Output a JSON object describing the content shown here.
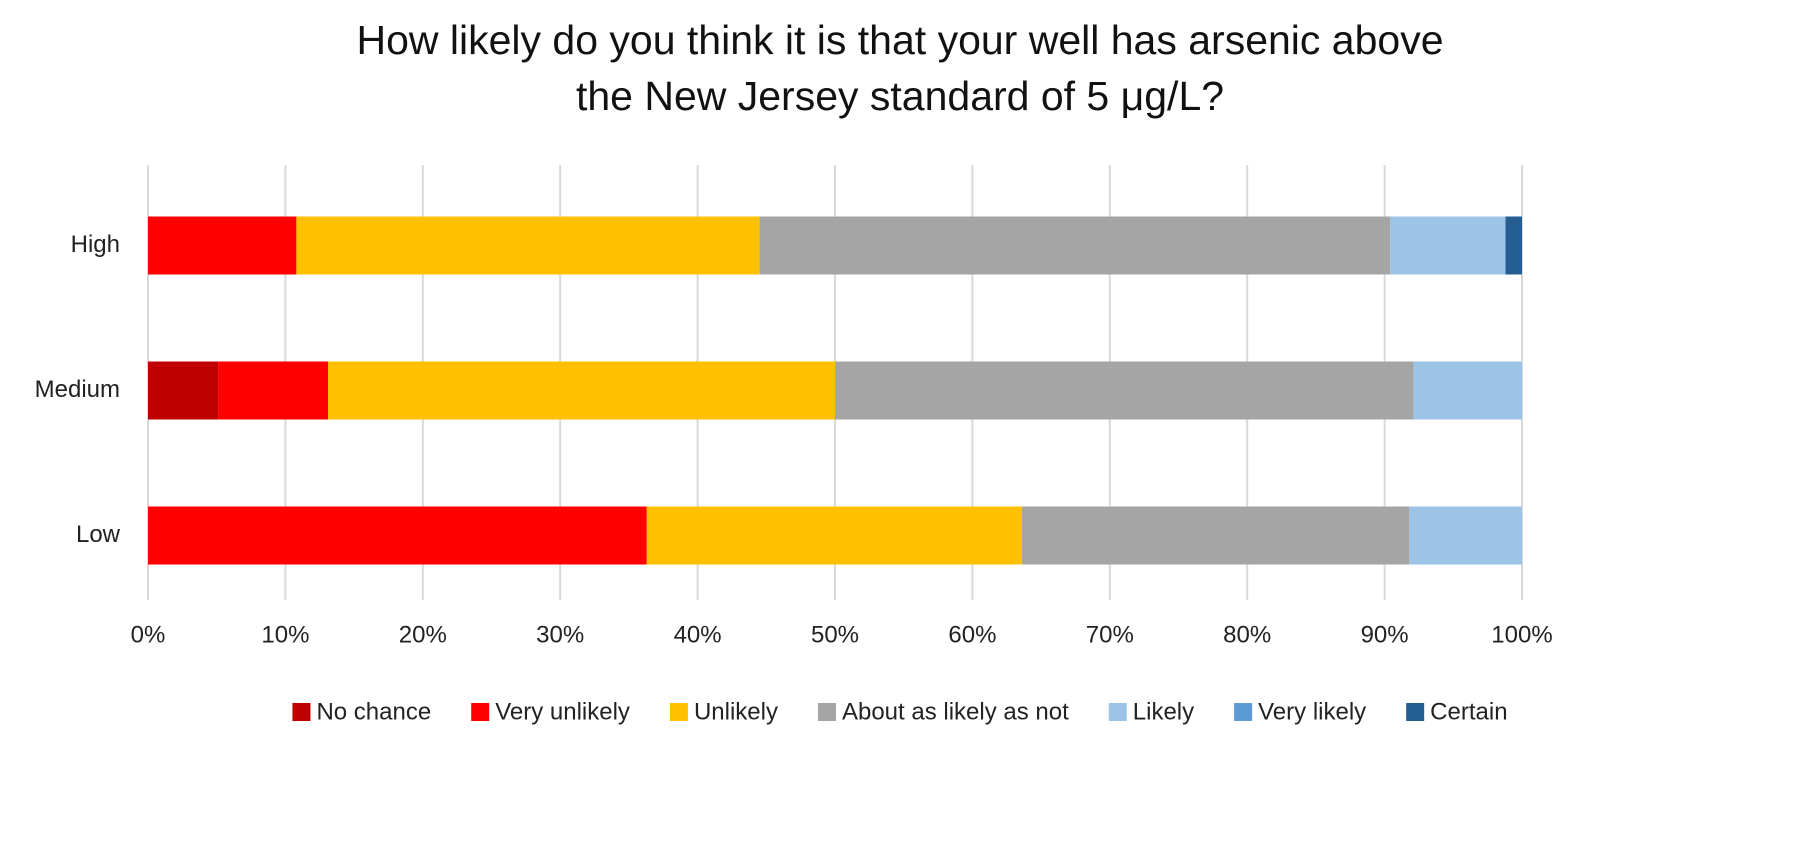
{
  "chart_data": {
    "type": "stacked-bar-horizontal",
    "title": "How likely do you think it is that your well has arsenic above\nthe New Jersey standard of 5 μg/L?",
    "categories": [
      "High",
      "Medium",
      "Low"
    ],
    "series": [
      {
        "name": "No chance",
        "color": "#c00000",
        "values": [
          0,
          5.1,
          0
        ]
      },
      {
        "name": "Very unlikely",
        "color": "#ff0000",
        "values": [
          10.8,
          8.0,
          36.3
        ]
      },
      {
        "name": "Unlikely",
        "color": "#ffc000",
        "values": [
          33.7,
          36.9,
          27.3
        ]
      },
      {
        "name": "About as likely as not",
        "color": "#a5a5a5",
        "values": [
          45.9,
          42.1,
          28.2
        ]
      },
      {
        "name": "Likely",
        "color": "#9dc3e6",
        "values": [
          8.4,
          7.9,
          8.2
        ]
      },
      {
        "name": "Very likely",
        "color": "#5b9bd5",
        "values": [
          0,
          0,
          0
        ]
      },
      {
        "name": "Certain",
        "color": "#255e91",
        "values": [
          1.2,
          0,
          0
        ]
      }
    ],
    "xlim": [
      0,
      100
    ],
    "xticks": [
      {
        "value": 0,
        "label": "0%"
      },
      {
        "value": 10,
        "label": "10%"
      },
      {
        "value": 20,
        "label": "20%"
      },
      {
        "value": 30,
        "label": "30%"
      },
      {
        "value": 40,
        "label": "40%"
      },
      {
        "value": 50,
        "label": "50%"
      },
      {
        "value": 60,
        "label": "60%"
      },
      {
        "value": 70,
        "label": "70%"
      },
      {
        "value": 80,
        "label": "80%"
      },
      {
        "value": 90,
        "label": "90%"
      },
      {
        "value": 100,
        "label": "100%"
      }
    ],
    "grid": true,
    "legend": "bottom"
  }
}
